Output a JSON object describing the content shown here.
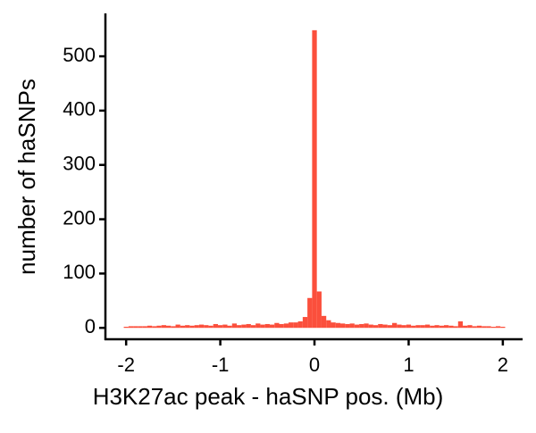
{
  "chart_data": {
    "type": "histogram",
    "x_label": "H3K27ac peak - haSNP pos. (Mb)",
    "y_label": "number of haSNPs",
    "color": "#fb4f3c",
    "bins": [
      -2.025,
      -1.975,
      -1.925,
      -1.875,
      -1.825,
      -1.775,
      -1.725,
      -1.675,
      -1.625,
      -1.575,
      -1.525,
      -1.475,
      -1.425,
      -1.375,
      -1.325,
      -1.275,
      -1.225,
      -1.175,
      -1.125,
      -1.075,
      -1.025,
      -0.975,
      -0.925,
      -0.875,
      -0.825,
      -0.775,
      -0.725,
      -0.675,
      -0.625,
      -0.575,
      -0.525,
      -0.475,
      -0.425,
      -0.375,
      -0.325,
      -0.275,
      -0.225,
      -0.175,
      -0.125,
      -0.075,
      -0.025,
      0.025,
      0.075,
      0.125,
      0.175,
      0.225,
      0.275,
      0.325,
      0.375,
      0.425,
      0.475,
      0.525,
      0.575,
      0.625,
      0.675,
      0.725,
      0.775,
      0.825,
      0.875,
      0.925,
      0.975,
      1.025,
      1.075,
      1.125,
      1.175,
      1.225,
      1.275,
      1.325,
      1.375,
      1.425,
      1.475,
      1.525,
      1.575,
      1.625,
      1.675,
      1.725,
      1.775,
      1.825,
      1.875,
      1.925,
      1.975,
      2.025
    ],
    "counts": [
      2,
      3,
      3,
      3,
      3,
      4,
      3,
      4,
      5,
      4,
      3,
      6,
      4,
      5,
      4,
      5,
      6,
      5,
      4,
      7,
      5,
      6,
      4,
      8,
      5,
      6,
      7,
      5,
      8,
      6,
      7,
      6,
      9,
      7,
      8,
      10,
      10,
      12,
      20,
      55,
      548,
      67,
      22,
      14,
      10,
      9,
      8,
      7,
      8,
      6,
      7,
      8,
      6,
      5,
      7,
      6,
      5,
      9,
      6,
      5,
      6,
      4,
      5,
      5,
      6,
      4,
      5,
      4,
      5,
      4,
      3,
      12,
      4,
      5,
      3,
      4,
      3,
      3,
      2,
      3,
      2
    ],
    "xlim": [
      -2.22,
      2.21
    ],
    "xticks": [
      -2,
      -1,
      0,
      1,
      2
    ],
    "ylim": [
      -21,
      579
    ],
    "yticks": [
      0,
      100,
      200,
      300,
      400,
      500
    ]
  }
}
